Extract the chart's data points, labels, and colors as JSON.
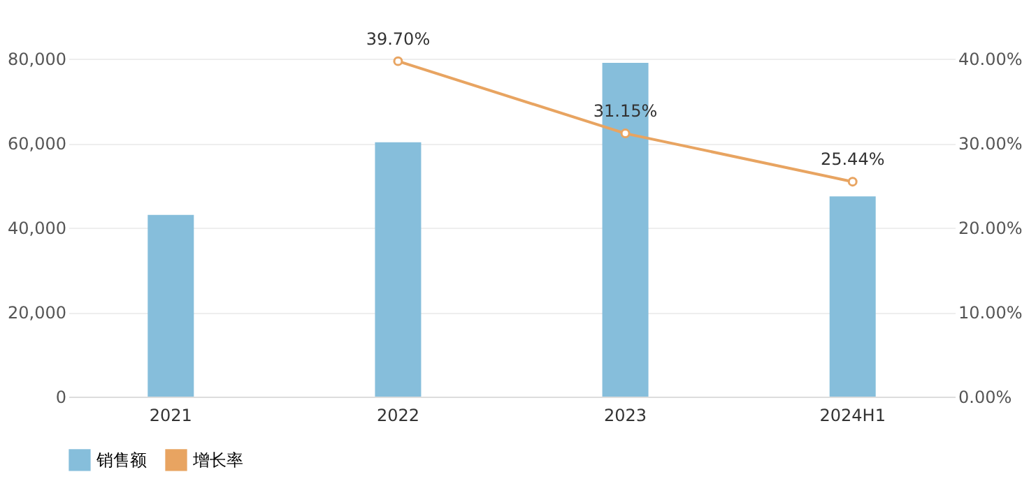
{
  "chart_data": {
    "type": "bar",
    "categories": [
      "2021",
      "2022",
      "2023",
      "2024H1"
    ],
    "series": [
      {
        "name": "销售额",
        "color": "#86bedb",
        "values": [
          43000,
          60200,
          79000,
          47400
        ]
      },
      {
        "name": "增长率",
        "type": "line",
        "axis": "y2",
        "color": "#e8a461",
        "values": [
          null,
          39.7,
          31.15,
          25.44
        ],
        "value_labels": [
          null,
          "39.70%",
          "31.15%",
          "25.44%"
        ],
        "marker": "circle"
      }
    ],
    "ylim": [
      0,
      80000
    ],
    "yticks": [
      0,
      {
        "value": 20000,
        "label": "20,000"
      },
      {
        "value": 40000,
        "label": "40,000"
      },
      {
        "value": 60000,
        "label": "60,000"
      },
      {
        "value": 80000,
        "label": "80,000"
      }
    ],
    "y2lim": [
      0,
      40
    ],
    "y2ticks": [
      {
        "value": 0,
        "label": "0.00%"
      },
      {
        "value": 10,
        "label": "10.00%"
      },
      {
        "value": 20,
        "label": "20.00%"
      },
      {
        "value": 30,
        "label": "30.00%"
      },
      {
        "value": 40,
        "label": "40.00%"
      }
    ],
    "grid": "y",
    "legend": "bottom"
  }
}
